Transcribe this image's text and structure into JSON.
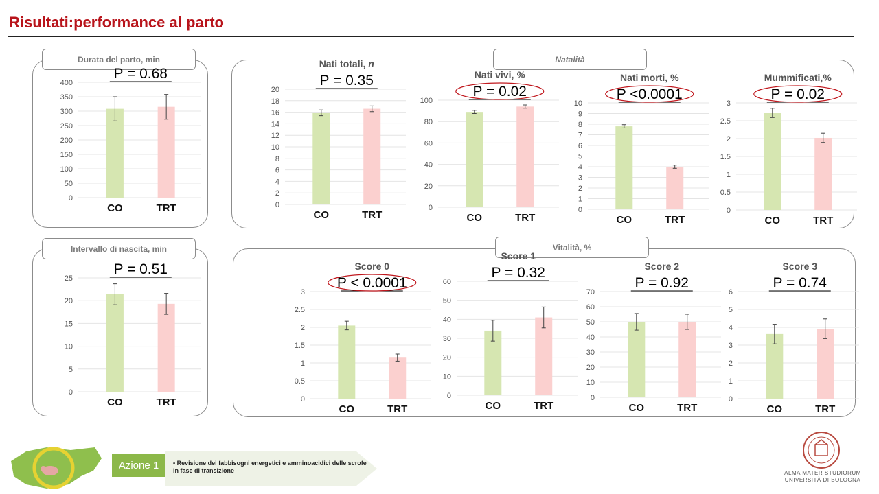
{
  "slide_title": "Risultati:performance al parto",
  "sections": {
    "natalita": "Natalità",
    "vitalita": "Vitalità, %",
    "durata": "Durata del parto, min",
    "intervallo": "Intervallo di nascita, min"
  },
  "footer": {
    "azione_label": "Azione 1",
    "azione_text": "Revisione dei fabbisogni energetici e amminoacidici delle scrofe in fase di transizione",
    "university_line1": "ALMA MATER STUDIORUM",
    "university_line2": "UNIVERSITÀ DI BOLOGNA"
  },
  "colors": {
    "co": "#d6e6b1",
    "trt": "#fbd0cf",
    "highlight": "#c0181e",
    "title": "#b8141b"
  },
  "chart_data": [
    {
      "id": "durata",
      "type": "bar",
      "title": "",
      "title_suffix": "",
      "p_value": "P = 0.68",
      "highlight": false,
      "categories": [
        "CO",
        "TRT"
      ],
      "values": [
        308,
        315
      ],
      "errors": [
        42,
        43
      ],
      "ylim": [
        0,
        400
      ],
      "yticks": [
        0,
        50,
        100,
        150,
        200,
        250,
        300,
        350,
        400
      ]
    },
    {
      "id": "nati_totali",
      "type": "bar",
      "title": "Nati totali, ",
      "title_suffix": "n",
      "p_value": "P = 0.35",
      "highlight": false,
      "categories": [
        "CO",
        "TRT"
      ],
      "values": [
        15.9,
        16.6
      ],
      "errors": [
        0.5,
        0.5
      ],
      "ylim": [
        0,
        20
      ],
      "yticks": [
        0,
        2,
        4,
        6,
        8,
        10,
        12,
        14,
        16,
        18,
        20
      ]
    },
    {
      "id": "nati_vivi",
      "type": "bar",
      "title": "Nati vivi, ",
      "title_suffix": "%",
      "p_value": "P = 0.02",
      "highlight": true,
      "categories": [
        "CO",
        "TRT"
      ],
      "values": [
        89,
        94
      ],
      "errors": [
        1.5,
        1.5
      ],
      "ylim": [
        0,
        100
      ],
      "yticks": [
        0,
        20,
        40,
        60,
        80,
        100
      ]
    },
    {
      "id": "nati_morti",
      "type": "bar",
      "title": "Nati morti, %",
      "title_suffix": "",
      "p_value": "P <0.0001",
      "highlight": true,
      "categories": [
        "CO",
        "TRT"
      ],
      "values": [
        7.8,
        4.0
      ],
      "errors": [
        0.15,
        0.15
      ],
      "ylim": [
        0,
        10
      ],
      "yticks": [
        0,
        1,
        2,
        3,
        4,
        5,
        6,
        7,
        8,
        9,
        10
      ]
    },
    {
      "id": "mummificati",
      "type": "bar",
      "title": "Mummificati,%",
      "title_suffix": "",
      "p_value": "P = 0.02",
      "highlight": true,
      "categories": [
        "CO",
        "TRT"
      ],
      "values": [
        2.72,
        2.02
      ],
      "errors": [
        0.13,
        0.13
      ],
      "ylim": [
        0,
        3
      ],
      "yticks": [
        0,
        0.5,
        1,
        1.5,
        2,
        2.5,
        3
      ]
    },
    {
      "id": "intervallo",
      "type": "bar",
      "title": "",
      "title_suffix": "",
      "p_value": "P = 0.51",
      "highlight": false,
      "categories": [
        "CO",
        "TRT"
      ],
      "values": [
        21.4,
        19.3
      ],
      "errors": [
        2.3,
        2.3
      ],
      "ylim": [
        0,
        25
      ],
      "yticks": [
        0,
        5,
        10,
        15,
        20,
        25
      ]
    },
    {
      "id": "score0",
      "type": "bar",
      "title": "Score 0",
      "title_suffix": "",
      "p_value": "P < 0.0001",
      "highlight": true,
      "categories": [
        "CO",
        "TRT"
      ],
      "values": [
        2.05,
        1.15
      ],
      "errors": [
        0.12,
        0.1
      ],
      "ylim": [
        0,
        3
      ],
      "yticks": [
        0,
        0.5,
        1,
        1.5,
        2,
        2.5,
        3
      ]
    },
    {
      "id": "score1",
      "type": "bar",
      "title": "Score 1",
      "title_suffix": "",
      "p_value": "P = 0.32",
      "highlight": false,
      "categories": [
        "CO",
        "TRT"
      ],
      "values": [
        34,
        41
      ],
      "errors": [
        5.5,
        5.5
      ],
      "ylim": [
        0,
        60
      ],
      "yticks": [
        0,
        10,
        20,
        30,
        40,
        50,
        60
      ]
    },
    {
      "id": "score2",
      "type": "bar",
      "title": "Score 2",
      "title_suffix": "",
      "p_value": "P = 0.92",
      "highlight": false,
      "categories": [
        "CO",
        "TRT"
      ],
      "values": [
        50,
        50
      ],
      "errors": [
        5.5,
        5.0
      ],
      "ylim": [
        0,
        70
      ],
      "yticks": [
        0,
        10,
        20,
        30,
        40,
        50,
        60,
        70
      ]
    },
    {
      "id": "score3",
      "type": "bar",
      "title": "Score 3",
      "title_suffix": "",
      "p_value": "P = 0.74",
      "highlight": false,
      "categories": [
        "CO",
        "TRT"
      ],
      "values": [
        3.62,
        3.92
      ],
      "errors": [
        0.55,
        0.55
      ],
      "ylim": [
        0,
        6
      ],
      "yticks": [
        0,
        1,
        2,
        3,
        4,
        5,
        6
      ]
    }
  ]
}
